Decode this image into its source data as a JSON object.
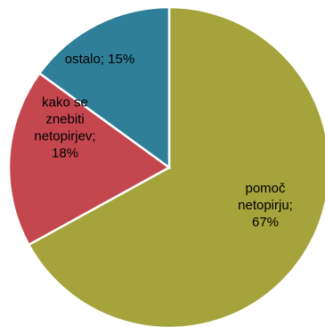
{
  "chart_data": {
    "type": "pie",
    "title": "",
    "start": "top, clockwise",
    "slices": [
      {
        "name": "pomoč netopirju",
        "value": 67,
        "label_lines": [
          "pomoč",
          "netopirju;",
          "67%"
        ],
        "color": "#a5a33c"
      },
      {
        "name": "kako se znebiti netopirjev",
        "value": 18,
        "label_lines": [
          "kako se",
          "znebiti",
          "netopirjev;",
          "18%"
        ],
        "color": "#c4474e"
      },
      {
        "name": "ostalo",
        "value": 15,
        "label_lines": [
          "ostalo; 15%"
        ],
        "color": "#2f7f99"
      }
    ]
  }
}
